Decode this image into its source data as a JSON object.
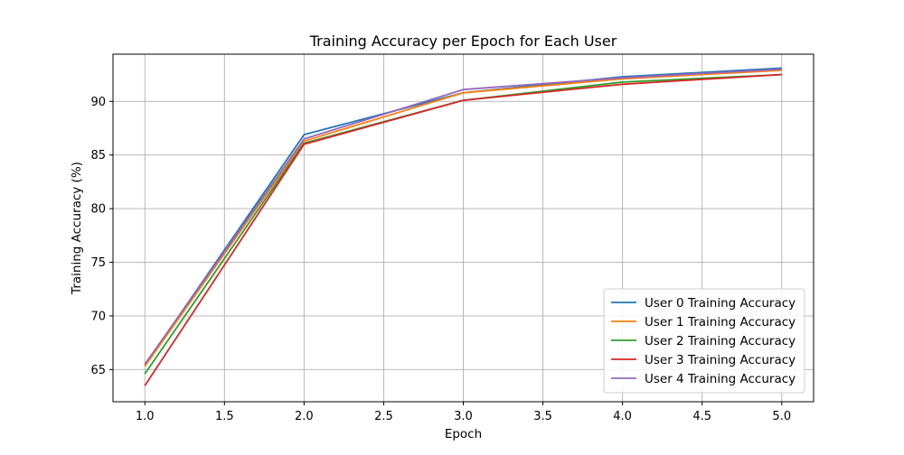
{
  "chart_data": {
    "type": "line",
    "title": "Training Accuracy per Epoch for Each User",
    "xlabel": "Epoch",
    "ylabel": "Training Accuracy (%)",
    "xlim": [
      0.8,
      5.2
    ],
    "ylim": [
      62.0,
      94.4
    ],
    "x": [
      1,
      2,
      3,
      4,
      5
    ],
    "xticks": [
      "1.0",
      "1.5",
      "2.0",
      "2.5",
      "3.0",
      "3.5",
      "4.0",
      "4.5",
      "5.0"
    ],
    "yticks": [
      "65",
      "70",
      "75",
      "80",
      "85",
      "90"
    ],
    "grid": true,
    "legend_position": "lower-right",
    "series": [
      {
        "name": "User 0 Training Accuracy",
        "color": "#1f77b4",
        "values": [
          65.4,
          86.9,
          90.8,
          92.3,
          93.1
        ]
      },
      {
        "name": "User 1 Training Accuracy",
        "color": "#ff7f0e",
        "values": [
          65.3,
          86.3,
          90.8,
          92.1,
          92.9
        ]
      },
      {
        "name": "User 2 Training Accuracy",
        "color": "#2ca02c",
        "values": [
          64.6,
          86.1,
          90.1,
          91.8,
          92.5
        ]
      },
      {
        "name": "User 3 Training Accuracy",
        "color": "#d62728",
        "values": [
          63.5,
          86.0,
          90.1,
          91.6,
          92.5
        ]
      },
      {
        "name": "User 4 Training Accuracy",
        "color": "#9467bd",
        "values": [
          65.5,
          86.5,
          91.1,
          92.2,
          93.0
        ]
      }
    ]
  }
}
